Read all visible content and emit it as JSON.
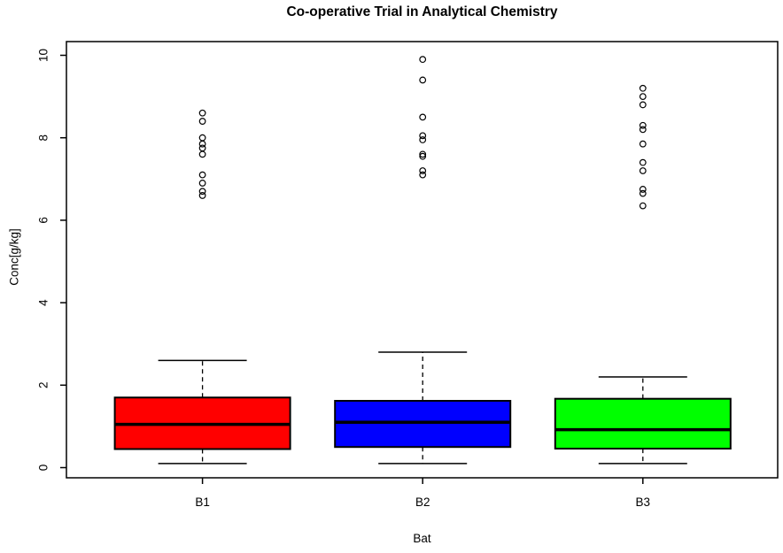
{
  "title": "Co-operative Trial in Analytical Chemistry",
  "chart_data": {
    "type": "boxplot",
    "title": "Co-operative Trial in Analytical Chemistry",
    "xlabel": "Bat",
    "ylabel": "Conc[g/kg]",
    "ylim": [
      0,
      10
    ],
    "y_ticks": [
      0,
      2,
      4,
      6,
      8,
      10
    ],
    "grid": "off",
    "categories": [
      "B1",
      "B2",
      "B3"
    ],
    "series": [
      {
        "name": "B1",
        "color": "#FF0000",
        "lower_whisker": 0.1,
        "q1": 0.45,
        "median": 1.05,
        "q3": 1.7,
        "upper_whisker": 2.6,
        "outliers": [
          8.6,
          8.4,
          8.0,
          7.85,
          7.75,
          7.6,
          7.1,
          6.9,
          6.7,
          6.6
        ]
      },
      {
        "name": "B2",
        "color": "#0000FF",
        "lower_whisker": 0.1,
        "q1": 0.5,
        "median": 1.1,
        "q3": 1.62,
        "upper_whisker": 2.8,
        "outliers": [
          9.9,
          9.4,
          8.5,
          8.05,
          7.95,
          7.6,
          7.55,
          7.2,
          7.1
        ]
      },
      {
        "name": "B3",
        "color": "#00FF00",
        "lower_whisker": 0.1,
        "q1": 0.46,
        "median": 0.92,
        "q3": 1.67,
        "upper_whisker": 2.2,
        "outliers": [
          9.2,
          9.0,
          8.8,
          8.3,
          8.2,
          7.85,
          7.4,
          7.2,
          6.75,
          6.65,
          6.35
        ]
      }
    ]
  }
}
